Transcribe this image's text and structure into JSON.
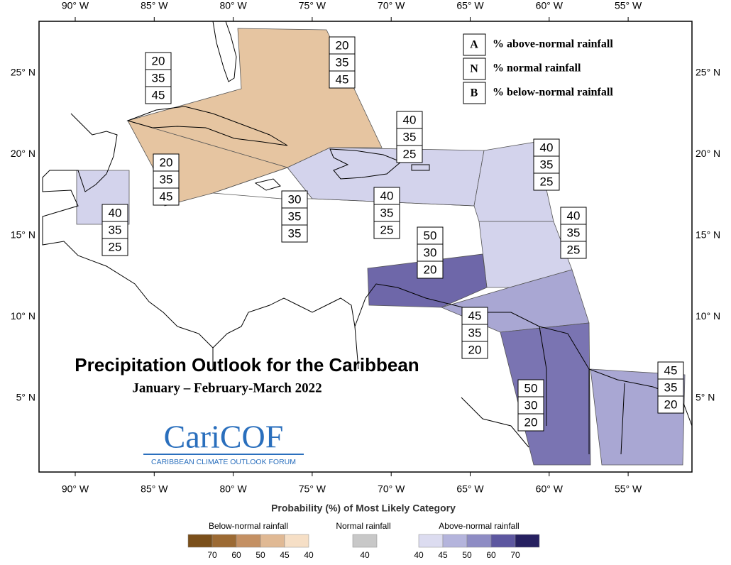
{
  "title": "Precipitation Outlook for the Caribbean",
  "subtitle": "January – February-March 2022",
  "logo": {
    "name": "CariCOF",
    "tagline": "CARIBBEAN CLIMATE OUTLOOK FORUM"
  },
  "axes": {
    "longitude_labels": [
      "90° W",
      "85° W",
      "80° W",
      "75° W",
      "70° W",
      "65° W",
      "60° W",
      "55° W"
    ],
    "latitude_labels": [
      "25° N",
      "20° N",
      "15° N",
      "10° N",
      "5° N"
    ]
  },
  "key": [
    {
      "letter": "A",
      "text": "% above-normal rainfall"
    },
    {
      "letter": "N",
      "text": "% normal rainfall"
    },
    {
      "letter": "B",
      "text": "% below-normal rainfall"
    }
  ],
  "regions": [
    {
      "values": [
        20,
        35,
        45
      ],
      "color": "#e6c5a1"
    },
    {
      "values": [
        20,
        35,
        45
      ],
      "color": "#e6c5a1"
    },
    {
      "values": [
        20,
        35,
        45
      ],
      "color": "#e6c5a1"
    },
    {
      "values": [
        30,
        35,
        35
      ],
      "color": "#ffffff"
    },
    {
      "values": [
        40,
        35,
        25
      ],
      "color": "#d3d3ec"
    },
    {
      "values": [
        40,
        35,
        25
      ],
      "color": "#d3d3ec"
    },
    {
      "values": [
        40,
        35,
        25
      ],
      "color": "#d3d3ec"
    },
    {
      "values": [
        40,
        35,
        25
      ],
      "color": "#d3d3ec"
    },
    {
      "values": [
        40,
        35,
        25
      ],
      "color": "#d3d3ec"
    },
    {
      "values": [
        50,
        30,
        20
      ],
      "color": "#6e67a9"
    },
    {
      "values": [
        45,
        35,
        20
      ],
      "color": "#a9a7d3"
    },
    {
      "values": [
        50,
        30,
        20
      ],
      "color": "#7a74b2"
    },
    {
      "values": [
        45,
        35,
        20
      ],
      "color": "#a9a7d3"
    }
  ],
  "legend": {
    "title": "Probability (%) of Most Likely Category",
    "groups": [
      {
        "name": "Below-normal rainfall",
        "swatches": [
          "#7a4f1a",
          "#9c6a33",
          "#c49063",
          "#e0b994",
          "#f6dfc6"
        ],
        "ticks": [
          70,
          60,
          50,
          45,
          40
        ]
      },
      {
        "name": "Normal rainfall",
        "swatches": [
          "#c8c8c8"
        ],
        "ticks": [
          40
        ]
      },
      {
        "name": "Above-normal rainfall",
        "swatches": [
          "#dcdcf0",
          "#b4b4dc",
          "#8e8cc4",
          "#5d57a0",
          "#262060"
        ],
        "ticks": [
          40,
          45,
          50,
          60,
          70
        ]
      }
    ]
  }
}
